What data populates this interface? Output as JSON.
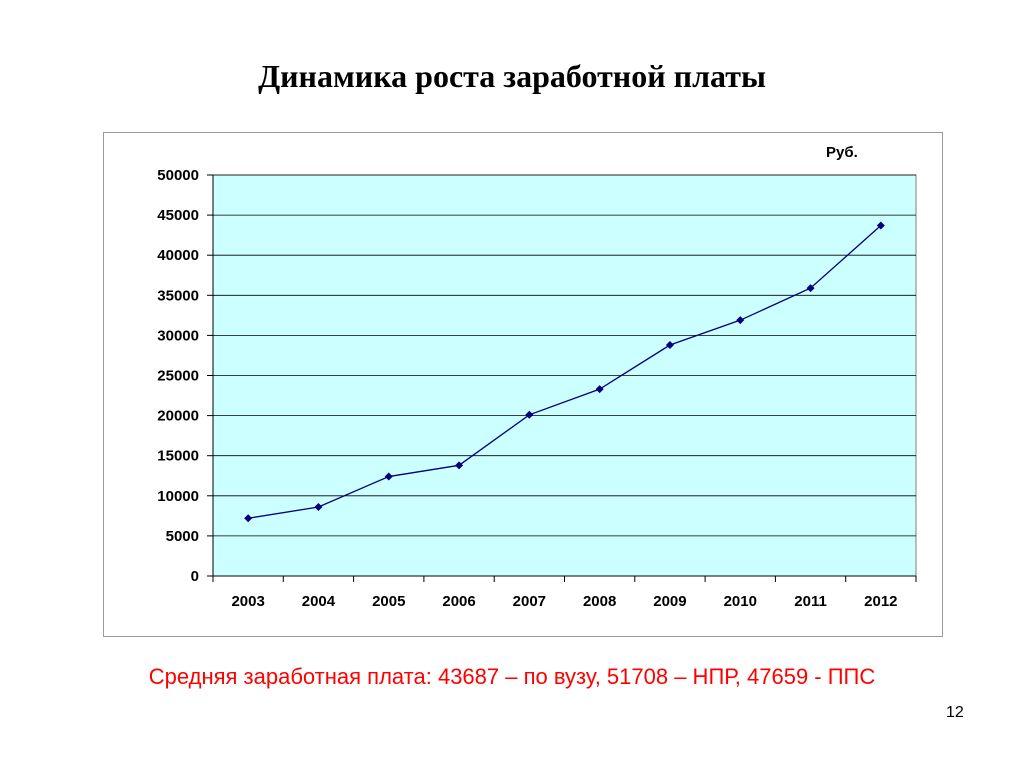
{
  "slide": {
    "title": "Динамика роста заработной платы",
    "footnote": "Средняя заработная плата: 43687 – по вузу, 51708 – НПР, 47659 - ППС",
    "page_number": "12"
  },
  "colors": {
    "plot_background": "#ccffff",
    "series_line": "#000080",
    "gridline": "#000000",
    "footnote_text": "#ff0000"
  },
  "chart_data": {
    "type": "line",
    "title": "",
    "unit_label": "Руб.",
    "xlabel": "",
    "ylabel": "",
    "categories": [
      "2003",
      "2004",
      "2005",
      "2006",
      "2007",
      "2008",
      "2009",
      "2010",
      "2011",
      "2012"
    ],
    "series": [
      {
        "values": [
          7200,
          8600,
          12400,
          13800,
          20100,
          23300,
          28800,
          31900,
          35900,
          43700
        ]
      }
    ],
    "ylim": [
      0,
      50000
    ],
    "ytick_step": 5000,
    "grid": "horizontal",
    "legend": "none",
    "marker": "diamond"
  }
}
